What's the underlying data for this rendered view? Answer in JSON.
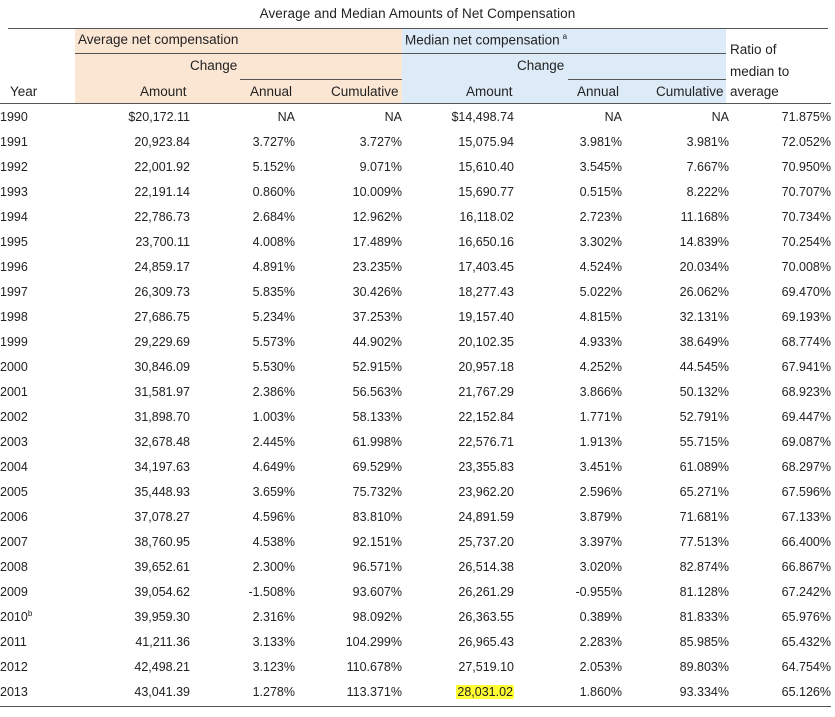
{
  "title": "Average and Median Amounts of Net Compensation",
  "headers": {
    "avg_group": "Average net compensation",
    "med_group": "Median net compensation",
    "med_note": "a",
    "change": "Change",
    "ratio_line1": "Ratio of",
    "ratio_line2": "median to",
    "year": "Year",
    "amount": "Amount",
    "annual": "Annual",
    "cumulative": "Cumulative",
    "ratio_line3": "average"
  },
  "rows": [
    {
      "year": "1990",
      "sup": "",
      "avg": "$20,172.11",
      "avg_annual": "NA",
      "avg_cum": "NA",
      "med": "$14,498.74",
      "med_annual": "NA",
      "med_cum": "NA",
      "ratio": "71.875%"
    },
    {
      "year": "1991",
      "sup": "",
      "avg": "20,923.84",
      "avg_annual": "3.727%",
      "avg_cum": "3.727%",
      "med": "15,075.94",
      "med_annual": "3.981%",
      "med_cum": "3.981%",
      "ratio": "72.052%"
    },
    {
      "year": "1992",
      "sup": "",
      "avg": "22,001.92",
      "avg_annual": "5.152%",
      "avg_cum": "9.071%",
      "med": "15,610.40",
      "med_annual": "3.545%",
      "med_cum": "7.667%",
      "ratio": "70.950%"
    },
    {
      "year": "1993",
      "sup": "",
      "avg": "22,191.14",
      "avg_annual": "0.860%",
      "avg_cum": "10.009%",
      "med": "15,690.77",
      "med_annual": "0.515%",
      "med_cum": "8.222%",
      "ratio": "70.707%"
    },
    {
      "year": "1994",
      "sup": "",
      "avg": "22,786.73",
      "avg_annual": "2.684%",
      "avg_cum": "12.962%",
      "med": "16,118.02",
      "med_annual": "2.723%",
      "med_cum": "11.168%",
      "ratio": "70.734%"
    },
    {
      "year": "1995",
      "sup": "",
      "avg": "23,700.11",
      "avg_annual": "4.008%",
      "avg_cum": "17.489%",
      "med": "16,650.16",
      "med_annual": "3.302%",
      "med_cum": "14.839%",
      "ratio": "70.254%"
    },
    {
      "year": "1996",
      "sup": "",
      "avg": "24,859.17",
      "avg_annual": "4.891%",
      "avg_cum": "23.235%",
      "med": "17,403.45",
      "med_annual": "4.524%",
      "med_cum": "20.034%",
      "ratio": "70.008%"
    },
    {
      "year": "1997",
      "sup": "",
      "avg": "26,309.73",
      "avg_annual": "5.835%",
      "avg_cum": "30.426%",
      "med": "18,277.43",
      "med_annual": "5.022%",
      "med_cum": "26.062%",
      "ratio": "69.470%"
    },
    {
      "year": "1998",
      "sup": "",
      "avg": "27,686.75",
      "avg_annual": "5.234%",
      "avg_cum": "37.253%",
      "med": "19,157.40",
      "med_annual": "4.815%",
      "med_cum": "32.131%",
      "ratio": "69.193%"
    },
    {
      "year": "1999",
      "sup": "",
      "avg": "29,229.69",
      "avg_annual": "5.573%",
      "avg_cum": "44.902%",
      "med": "20,102.35",
      "med_annual": "4.933%",
      "med_cum": "38.649%",
      "ratio": "68.774%"
    },
    {
      "year": "2000",
      "sup": "",
      "avg": "30,846.09",
      "avg_annual": "5.530%",
      "avg_cum": "52.915%",
      "med": "20,957.18",
      "med_annual": "4.252%",
      "med_cum": "44.545%",
      "ratio": "67.941%"
    },
    {
      "year": "2001",
      "sup": "",
      "avg": "31,581.97",
      "avg_annual": "2.386%",
      "avg_cum": "56.563%",
      "med": "21,767.29",
      "med_annual": "3.866%",
      "med_cum": "50.132%",
      "ratio": "68.923%"
    },
    {
      "year": "2002",
      "sup": "",
      "avg": "31,898.70",
      "avg_annual": "1.003%",
      "avg_cum": "58.133%",
      "med": "22,152.84",
      "med_annual": "1.771%",
      "med_cum": "52.791%",
      "ratio": "69.447%"
    },
    {
      "year": "2003",
      "sup": "",
      "avg": "32,678.48",
      "avg_annual": "2.445%",
      "avg_cum": "61.998%",
      "med": "22,576.71",
      "med_annual": "1.913%",
      "med_cum": "55.715%",
      "ratio": "69.087%"
    },
    {
      "year": "2004",
      "sup": "",
      "avg": "34,197.63",
      "avg_annual": "4.649%",
      "avg_cum": "69.529%",
      "med": "23,355.83",
      "med_annual": "3.451%",
      "med_cum": "61.089%",
      "ratio": "68.297%"
    },
    {
      "year": "2005",
      "sup": "",
      "avg": "35,448.93",
      "avg_annual": "3.659%",
      "avg_cum": "75.732%",
      "med": "23,962.20",
      "med_annual": "2.596%",
      "med_cum": "65.271%",
      "ratio": "67.596%"
    },
    {
      "year": "2006",
      "sup": "",
      "avg": "37,078.27",
      "avg_annual": "4.596%",
      "avg_cum": "83.810%",
      "med": "24,891.59",
      "med_annual": "3.879%",
      "med_cum": "71.681%",
      "ratio": "67.133%"
    },
    {
      "year": "2007",
      "sup": "",
      "avg": "38,760.95",
      "avg_annual": "4.538%",
      "avg_cum": "92.151%",
      "med": "25,737.20",
      "med_annual": "3.397%",
      "med_cum": "77.513%",
      "ratio": "66.400%"
    },
    {
      "year": "2008",
      "sup": "",
      "avg": "39,652.61",
      "avg_annual": "2.300%",
      "avg_cum": "96.571%",
      "med": "26,514.38",
      "med_annual": "3.020%",
      "med_cum": "82.874%",
      "ratio": "66.867%"
    },
    {
      "year": "2009",
      "sup": "",
      "avg": "39,054.62",
      "avg_annual": "-1.508%",
      "avg_cum": "93.607%",
      "med": "26,261.29",
      "med_annual": "-0.955%",
      "med_cum": "81.128%",
      "ratio": "67.242%"
    },
    {
      "year": "2010",
      "sup": "b",
      "avg": "39,959.30",
      "avg_annual": "2.316%",
      "avg_cum": "98.092%",
      "med": "26,363.55",
      "med_annual": "0.389%",
      "med_cum": "81.833%",
      "ratio": "65.976%"
    },
    {
      "year": "2011",
      "sup": "",
      "avg": "41,211.36",
      "avg_annual": "3.133%",
      "avg_cum": "104.299%",
      "med": "26,965.43",
      "med_annual": "2.283%",
      "med_cum": "85.985%",
      "ratio": "65.432%"
    },
    {
      "year": "2012",
      "sup": "",
      "avg": "42,498.21",
      "avg_annual": "3.123%",
      "avg_cum": "110.678%",
      "med": "27,519.10",
      "med_annual": "2.053%",
      "med_cum": "89.803%",
      "ratio": "64.754%"
    },
    {
      "year": "2013",
      "sup": "",
      "avg": "43,041.39",
      "avg_annual": "1.278%",
      "avg_cum": "113.371%",
      "med": "28,031.02",
      "med_annual": "1.860%",
      "med_cum": "93.334%",
      "ratio": "65.126%"
    }
  ],
  "colors": {
    "avg_band": "#fbe6d4",
    "med_band": "#ddebf8",
    "highlight": "#ffff33"
  },
  "highlighted_cell": "28,031.02"
}
